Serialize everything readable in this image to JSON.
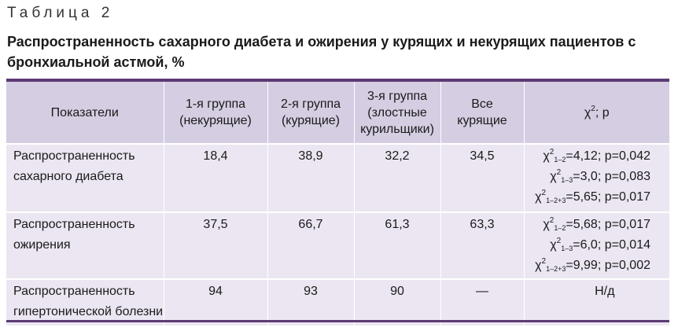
{
  "caption": {
    "label": "Таблица 2",
    "title": "Распространенность сахарного диабета и ожирения у курящих и некурящих пациентов с бронхиальной астмой, %"
  },
  "table": {
    "headers": {
      "indicator": "Показатели",
      "group1": [
        "1-я группа",
        "(некурящие)"
      ],
      "group2": [
        "2-я группа",
        "(курящие)"
      ],
      "group3": [
        "3-я группа",
        "(злостные",
        "курильщики)"
      ],
      "all": [
        "Все",
        "курящие"
      ],
      "chi": {
        "symbol": "χ",
        "sup": "2",
        "tail": "; р"
      }
    },
    "rows": [
      {
        "indicator": [
          "Распространенность",
          "сахарного диабета"
        ],
        "g1": "18,4",
        "g2": "38,9",
        "g3": "32,2",
        "all": "34,5",
        "stats": [
          {
            "sub": "1–2",
            "val": "=4,12; р=0,042"
          },
          {
            "sub": "1–3",
            "val": "=3,0; р=0,083"
          },
          {
            "sub": "1–2+3",
            "val": "=5,65; р=0,017"
          }
        ]
      },
      {
        "indicator": [
          "Распространенность",
          "ожирения"
        ],
        "g1": "37,5",
        "g2": "66,7",
        "g3": "61,3",
        "all": "63,3",
        "stats": [
          {
            "sub": "1–2",
            "val": "=5,68; р=0,017"
          },
          {
            "sub": "1–3",
            "val": "=6,0; р=0,014"
          },
          {
            "sub": "1–2+3",
            "val": "=9,99; р=0,002"
          }
        ]
      },
      {
        "indicator": [
          "Распространенность",
          "гипертонической болезни"
        ],
        "g1": "94",
        "g2": "93",
        "g3": "90",
        "all": "—",
        "nd": "Н/д"
      }
    ]
  },
  "colors": {
    "rule": "#5c3a74",
    "header_bg": "#d5cde2",
    "row_bg": "#ebe6f1"
  }
}
